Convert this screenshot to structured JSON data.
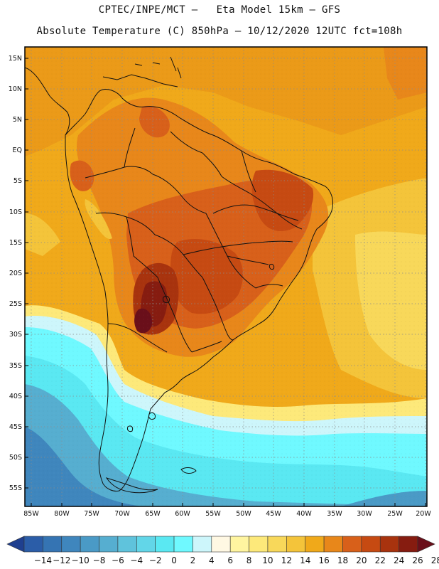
{
  "header": {
    "line1": "CPTEC/INPE/MCT –   Eta Model 15km – GFS",
    "line2": "Absolute Temperature (C) 850hPa – 10/12/2020 12UTC fct=108h"
  },
  "axes": {
    "lat_labels": [
      "15N",
      "10N",
      "5N",
      "EQ",
      "5S",
      "10S",
      "15S",
      "20S",
      "25S",
      "30S",
      "35S",
      "40S",
      "45S",
      "50S",
      "55S"
    ],
    "lon_labels": [
      "85W",
      "80W",
      "75W",
      "70W",
      "65W",
      "60W",
      "55W",
      "50W",
      "45W",
      "40W",
      "35W",
      "30W",
      "25W",
      "20W"
    ]
  },
  "colorbar": {
    "labels": [
      "-14",
      "-12",
      "-10",
      "-8",
      "-6",
      "-4",
      "-2",
      "0",
      "2",
      "4",
      "6",
      "8",
      "10",
      "12",
      "14",
      "16",
      "18",
      "20",
      "22",
      "24",
      "26",
      "28"
    ],
    "colors": [
      "#1f3f8f",
      "#2b5da8",
      "#3574b3",
      "#3f86bd",
      "#4a9ac6",
      "#56aed0",
      "#5fc3dc",
      "#62d6e8",
      "#5ae8f2",
      "#6ff9ff",
      "#cdf6fb",
      "#fff8e3",
      "#fff5a0",
      "#fde97a",
      "#f8d85a",
      "#f4c43a",
      "#f0a91a",
      "#e8871a",
      "#d8601a",
      "#c64a12",
      "#a8330e",
      "#861c10",
      "#6a0f1a"
    ]
  }
}
